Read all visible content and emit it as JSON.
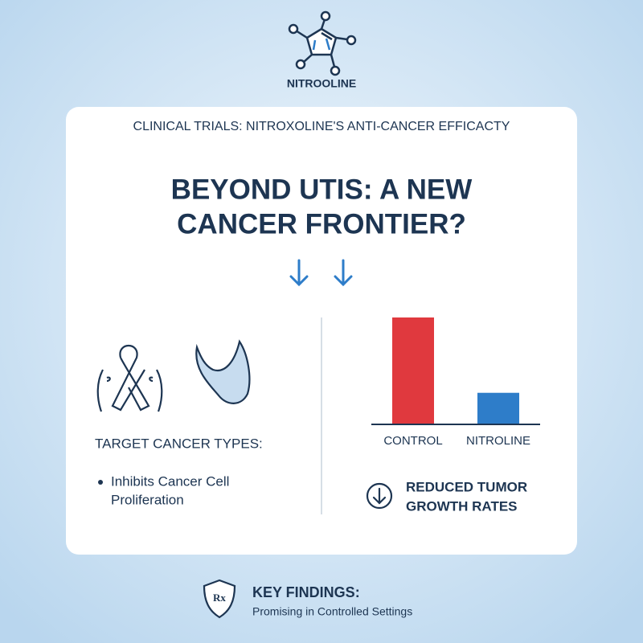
{
  "logo_text": "NITROOLINE",
  "card": {
    "header": "CLINICAL TRIALS: NITROXOLINE'S ANTI-CANCER EFFICACTY",
    "title_lines": [
      "BEYOND UTIS: A NEW",
      "CANCER FRONTIER?"
    ],
    "left": {
      "heading": "TARGET CANCER TYPES:",
      "bullet_lines": [
        "Inhibits Cancer Cell",
        "Proliferation"
      ]
    },
    "note_lines": [
      "REDUCED TUMOR",
      "GROWTH RATES"
    ]
  },
  "chart_data": {
    "type": "bar",
    "categories": [
      "CONTROL",
      "NITROLINE"
    ],
    "values": [
      100,
      29
    ],
    "colors": [
      "#e0393e",
      "#2e7dc9"
    ]
  },
  "footer": {
    "badge": "Rx",
    "title": "KEY FINDINGS:",
    "text": "Promising in Controlled Settings"
  }
}
